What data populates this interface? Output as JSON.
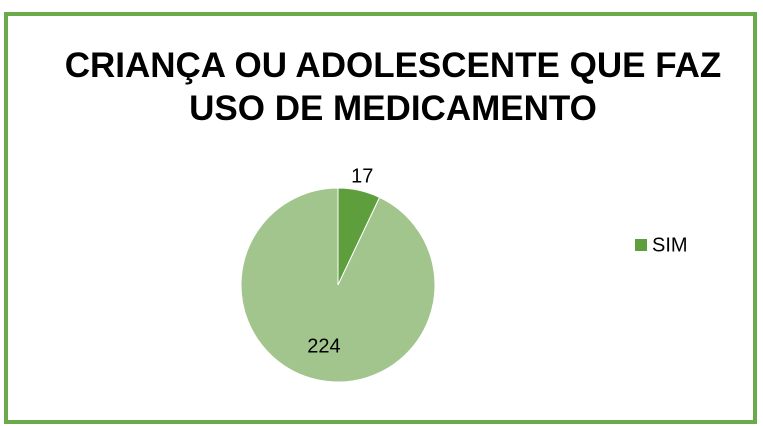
{
  "chart_data": {
    "type": "pie",
    "title": "CRIANÇA OU ADOLESCENTE QUE FAZ USO DE MEDICAMENTO",
    "categories": [
      "SIM",
      null
    ],
    "values": [
      17,
      224
    ],
    "colors": [
      "#5f9e3c",
      "#a1c58d"
    ],
    "legend": "right"
  }
}
